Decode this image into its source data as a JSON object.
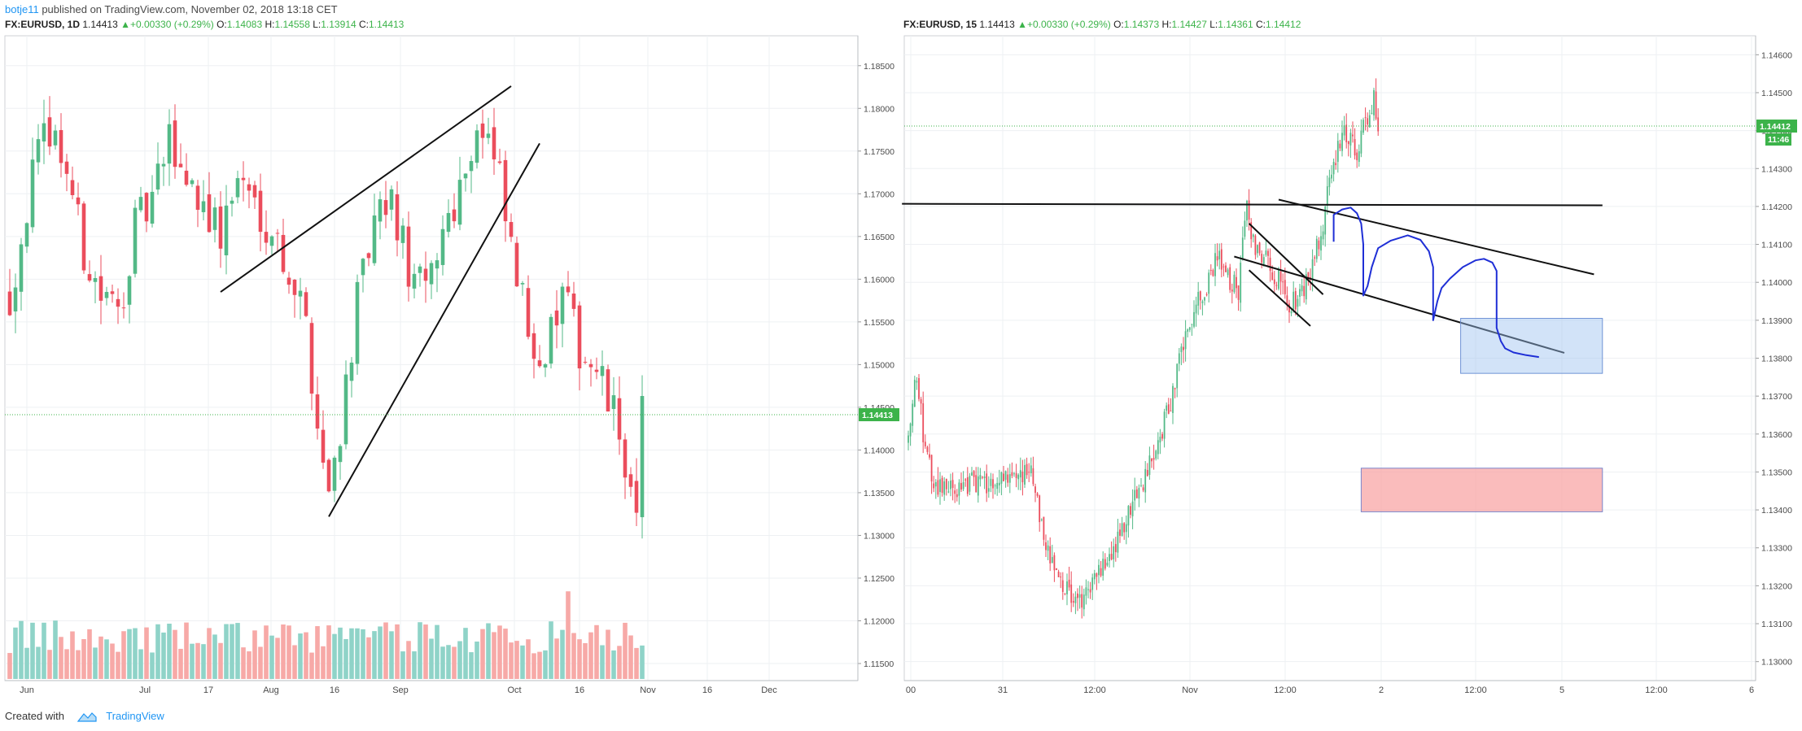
{
  "header": {
    "author": "botje11",
    "published_text": "published on TradingView.com, November 02, 2018 13:18 CET"
  },
  "footer": {
    "created_with": "Created with",
    "brand": "TradingView"
  },
  "colors": {
    "up": "#53b987",
    "down": "#eb4d5c",
    "vol_up": "#8fd3c8",
    "vol_down": "#f7a9a7",
    "price_line": "#3cb34a",
    "brand": "#2196f3"
  },
  "chart_data": [
    {
      "type": "candlestick",
      "symbol": "FX:EURUSD, 1D",
      "quote": {
        "last": "1.14413",
        "change": "+0.00330 (+0.29%)",
        "open": "1.14083",
        "high": "1.14558",
        "low": "1.13914",
        "close": "1.14413",
        "labels": {
          "open": "O:",
          "high": "H:",
          "low": "L:",
          "close": "C:"
        }
      },
      "x_ticks": [
        "Jun",
        "Jul",
        "17",
        "Aug",
        "16",
        "Sep",
        "Oct",
        "16",
        "Nov",
        "16",
        "Dec"
      ],
      "y_ticks": [
        "1.18500",
        "1.18000",
        "1.17500",
        "1.17000",
        "1.16500",
        "1.16000",
        "1.15500",
        "1.15000",
        "1.14500",
        "1.14000",
        "1.13500",
        "1.13000",
        "1.12500",
        "1.12000",
        "1.11500"
      ],
      "ylim": [
        1.113,
        1.1885
      ],
      "price_label": "1.14413",
      "price_level": 1.14413,
      "has_volume": true,
      "grid": true,
      "anchors": [
        [
          0,
          1.158
        ],
        [
          4,
          1.172
        ],
        [
          7,
          1.178
        ],
        [
          10,
          1.173
        ],
        [
          13,
          1.163
        ],
        [
          16,
          1.158
        ],
        [
          19,
          1.156
        ],
        [
          22,
          1.166
        ],
        [
          25,
          1.169
        ],
        [
          28,
          1.176
        ],
        [
          31,
          1.172
        ],
        [
          34,
          1.169
        ],
        [
          37,
          1.165
        ],
        [
          40,
          1.172
        ],
        [
          43,
          1.169
        ],
        [
          46,
          1.166
        ],
        [
          49,
          1.161
        ],
        [
          52,
          1.155
        ],
        [
          54,
          1.143
        ],
        [
          56,
          1.135
        ],
        [
          58,
          1.143
        ],
        [
          61,
          1.157
        ],
        [
          64,
          1.166
        ],
        [
          67,
          1.169
        ],
        [
          70,
          1.161
        ],
        [
          73,
          1.158
        ],
        [
          76,
          1.166
        ],
        [
          79,
          1.171
        ],
        [
          82,
          1.178
        ],
        [
          84,
          1.176
        ],
        [
          86,
          1.171
        ],
        [
          88,
          1.163
        ],
        [
          91,
          1.154
        ],
        [
          94,
          1.151
        ],
        [
          97,
          1.158
        ],
        [
          100,
          1.152
        ],
        [
          103,
          1.149
        ],
        [
          106,
          1.144
        ],
        [
          108,
          1.139
        ],
        [
          110,
          1.131
        ],
        [
          111,
          1.144
        ]
      ],
      "trendlines": [
        {
          "points": [
            [
              37,
              1.1585
            ],
            [
              88,
              1.1826
            ]
          ]
        },
        {
          "points": [
            [
              56,
              1.1322
            ],
            [
              93,
              1.1759
            ]
          ]
        }
      ]
    },
    {
      "type": "candlestick",
      "symbol": "FX:EURUSD, 15",
      "quote": {
        "last": "1.14413",
        "change": "+0.00330 (+0.29%)",
        "open": "1.14373",
        "high": "1.14427",
        "low": "1.14361",
        "close": "1.14412",
        "labels": {
          "open": "O:",
          "high": "H:",
          "low": "L:",
          "close": "C:"
        }
      },
      "x_ticks": [
        "00",
        "31",
        "12:00",
        "Nov",
        "12:00",
        "2",
        "12:00",
        "5",
        "12:00",
        "6"
      ],
      "y_ticks": [
        "1.14600",
        "1.14500",
        "1.14400",
        "1.14300",
        "1.14200",
        "1.14100",
        "1.14000",
        "1.13900",
        "1.13800",
        "1.13700",
        "1.13600",
        "1.13500",
        "1.13400",
        "1.13300",
        "1.13200",
        "1.13100",
        "1.13000"
      ],
      "ylim": [
        1.1295,
        1.1465
      ],
      "price_label": "1.14412",
      "countdown": "11:46",
      "price_level": 1.14412,
      "has_volume": false,
      "grid": true,
      "candle_count": 250,
      "anchors": [
        [
          0,
          1.1358
        ],
        [
          4,
          1.1377
        ],
        [
          8,
          1.1355
        ],
        [
          14,
          1.1345
        ],
        [
          30,
          1.1347
        ],
        [
          50,
          1.1348
        ],
        [
          58,
          1.1352
        ],
        [
          62,
          1.1338
        ],
        [
          70,
          1.1322
        ],
        [
          76,
          1.1318
        ],
        [
          82,
          1.1316
        ],
        [
          88,
          1.1322
        ],
        [
          94,
          1.1328
        ],
        [
          100,
          1.1333
        ],
        [
          106,
          1.1342
        ],
        [
          112,
          1.1348
        ],
        [
          118,
          1.1358
        ],
        [
          124,
          1.1368
        ],
        [
          130,
          1.1385
        ],
        [
          136,
          1.1394
        ],
        [
          140,
          1.1396
        ],
        [
          146,
          1.1408
        ],
        [
          150,
          1.1402
        ],
        [
          156,
          1.1398
        ],
        [
          160,
          1.142
        ],
        [
          164,
          1.1408
        ],
        [
          170,
          1.1405
        ],
        [
          176,
          1.14
        ],
        [
          180,
          1.1395
        ],
        [
          184,
          1.1395
        ],
        [
          190,
          1.1402
        ],
        [
          196,
          1.1415
        ],
        [
          200,
          1.143
        ],
        [
          206,
          1.144
        ],
        [
          212,
          1.1435
        ],
        [
          218,
          1.1445
        ],
        [
          220,
          1.1448
        ],
        [
          222,
          1.1442
        ]
      ],
      "trendlines": [
        {
          "points": [
            [
              -3,
              1.14207
            ],
            [
              328,
              1.14203
            ]
          ]
        },
        {
          "points": [
            [
              175,
              1.14218
            ],
            [
              324,
              1.14021
            ]
          ]
        },
        {
          "points": [
            [
              154,
              1.14068
            ],
            [
              310,
              1.13814
            ]
          ]
        },
        {
          "points": [
            [
              161,
              1.14155
            ],
            [
              196,
              1.13968
            ]
          ]
        },
        {
          "points": [
            [
              161,
              1.14032
            ],
            [
              190,
              1.13885
            ]
          ]
        }
      ],
      "zones": [
        {
          "x_from": 261,
          "x_to": 328,
          "y_from": 1.1376,
          "y_to": 1.13905,
          "kind": "blue"
        },
        {
          "x_from": 214,
          "x_to": 328,
          "y_from": 1.13395,
          "y_to": 1.1351,
          "kind": "red"
        }
      ],
      "projection": [
        [
          201,
          1.14107
        ],
        [
          201,
          1.14178
        ],
        [
          205,
          1.14192
        ],
        [
          209,
          1.14197
        ],
        [
          212,
          1.14182
        ],
        [
          214,
          1.14155
        ],
        [
          215,
          1.141
        ],
        [
          215,
          1.1399
        ],
        [
          215,
          1.13965
        ],
        [
          217,
          1.1399
        ],
        [
          219,
          1.1404
        ],
        [
          222,
          1.1409
        ],
        [
          228,
          1.1411
        ],
        [
          236,
          1.14124
        ],
        [
          242,
          1.14112
        ],
        [
          246,
          1.14082
        ],
        [
          248,
          1.1404
        ],
        [
          248,
          1.1395
        ],
        [
          248,
          1.139
        ],
        [
          250,
          1.1395
        ],
        [
          252,
          1.13985
        ],
        [
          256,
          1.1401
        ],
        [
          262,
          1.1404
        ],
        [
          268,
          1.14058
        ],
        [
          272,
          1.14062
        ],
        [
          276,
          1.14052
        ],
        [
          278,
          1.1403
        ],
        [
          278,
          1.1396
        ],
        [
          278,
          1.1388
        ],
        [
          280,
          1.13845
        ],
        [
          282,
          1.13826
        ],
        [
          286,
          1.13815
        ],
        [
          292,
          1.13808
        ],
        [
          298,
          1.13803
        ]
      ]
    }
  ]
}
